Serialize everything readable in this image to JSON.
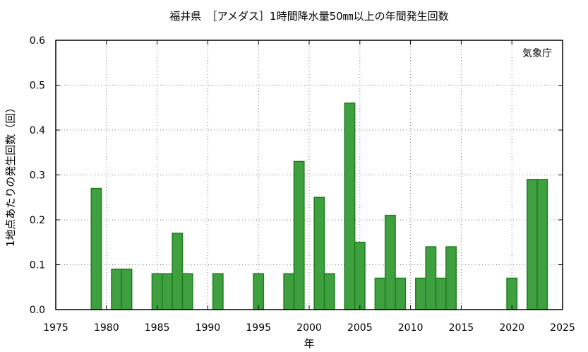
{
  "chart_data": {
    "type": "bar",
    "title": "福井県　［アメダス］1時間降水量50㎜以上の年間発生回数",
    "xlabel": "年",
    "ylabel": "1地点あたりの発生回数（回）",
    "source_label": "気象庁",
    "xlim": [
      1975,
      2025
    ],
    "ylim": [
      0,
      0.6
    ],
    "x_ticks": [
      1975,
      1980,
      1985,
      1990,
      1995,
      2000,
      2005,
      2010,
      2015,
      2020,
      2025
    ],
    "y_ticks": [
      0.0,
      0.1,
      0.2,
      0.3,
      0.4,
      0.5,
      0.6
    ],
    "y_tick_labels": [
      "0.0",
      "0.1",
      "0.2",
      "0.3",
      "0.4",
      "0.5",
      "0.6"
    ],
    "grid": true,
    "colors": {
      "bar_fill": "#3fa03f",
      "bar_edge": "#1e7d1e"
    },
    "x": [
      1979,
      1981,
      1982,
      1985,
      1986,
      1987,
      1988,
      1991,
      1995,
      1998,
      1999,
      2001,
      2002,
      2004,
      2005,
      2007,
      2008,
      2009,
      2011,
      2012,
      2013,
      2014,
      2020,
      2022,
      2023
    ],
    "values": [
      0.27,
      0.09,
      0.09,
      0.08,
      0.08,
      0.17,
      0.08,
      0.08,
      0.08,
      0.08,
      0.33,
      0.25,
      0.08,
      0.46,
      0.15,
      0.07,
      0.21,
      0.07,
      0.07,
      0.14,
      0.07,
      0.14,
      0.07,
      0.29,
      0.29
    ]
  }
}
